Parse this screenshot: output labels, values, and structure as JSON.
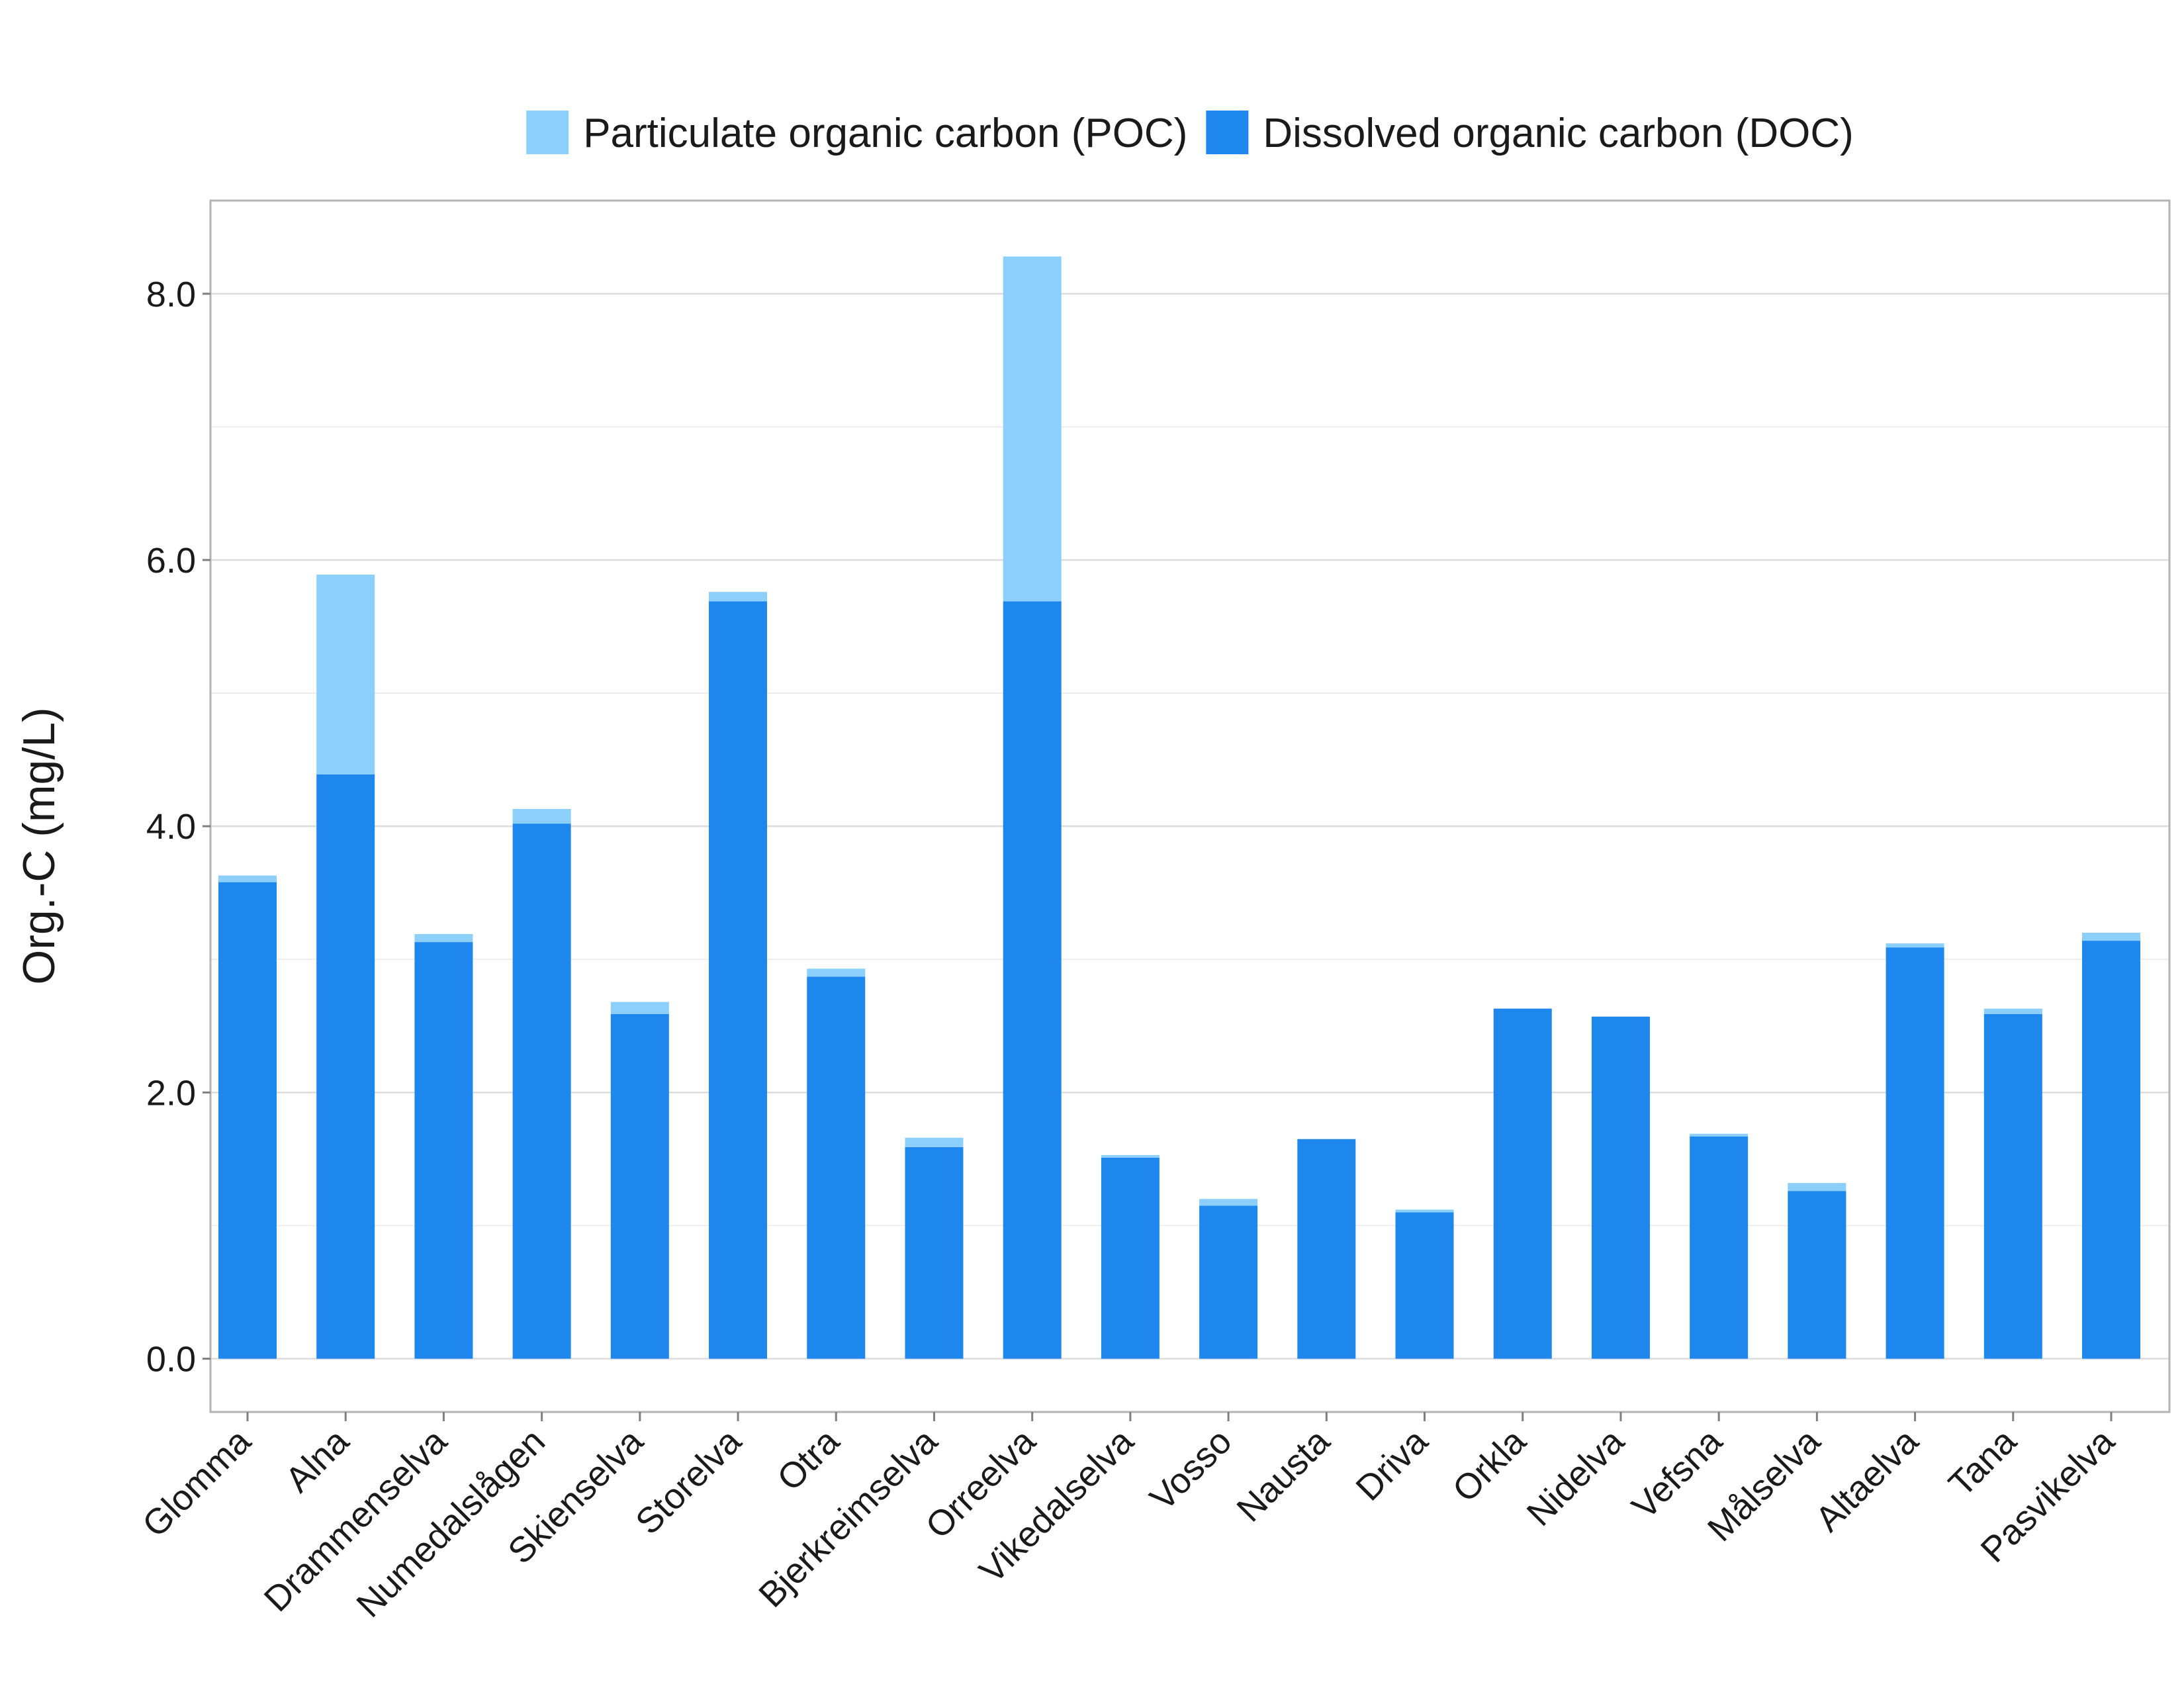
{
  "chart_data": {
    "type": "bar",
    "stacked": true,
    "title": "",
    "xlabel": "",
    "ylabel": "Org.-C (mg/L)",
    "ylim": [
      -0.4,
      8.7
    ],
    "yticks": [
      "0.0",
      "2.0",
      "4.0",
      "6.0",
      "8.0"
    ],
    "grid": true,
    "legend_position": "top",
    "categories": [
      "Glomma",
      "Alna",
      "Drammenselva",
      "Numedalslågen",
      "Skienselva",
      "Storelva",
      "Otra",
      "Bjerkreimselva",
      "Orreelva",
      "Vikedalselva",
      "Vosso",
      "Nausta",
      "Driva",
      "Orkla",
      "Nidelva",
      "Vefsna",
      "Målselva",
      "Altaelva",
      "Tana",
      "Pasvikelva"
    ],
    "series": [
      {
        "name": "Dissolved organic carbon (DOC)",
        "color": "#1e87ed",
        "values": [
          3.58,
          4.39,
          3.13,
          4.02,
          2.59,
          5.69,
          2.87,
          1.59,
          5.69,
          1.51,
          1.15,
          1.65,
          1.1,
          2.63,
          2.57,
          1.67,
          1.26,
          3.09,
          2.59,
          3.14
        ]
      },
      {
        "name": "Particulate organic carbon (POC)",
        "color": "#8ccffa",
        "values": [
          0.05,
          1.5,
          0.06,
          0.11,
          0.09,
          0.07,
          0.06,
          0.07,
          2.59,
          0.02,
          0.05,
          0.0,
          0.02,
          0.0,
          0.0,
          0.02,
          0.06,
          0.03,
          0.04,
          0.06
        ]
      }
    ]
  },
  "legend": {
    "items": [
      {
        "label": "Particulate organic carbon (POC)",
        "color": "#8ccffa"
      },
      {
        "label": "Dissolved organic carbon (DOC)",
        "color": "#1e87ed"
      }
    ]
  }
}
